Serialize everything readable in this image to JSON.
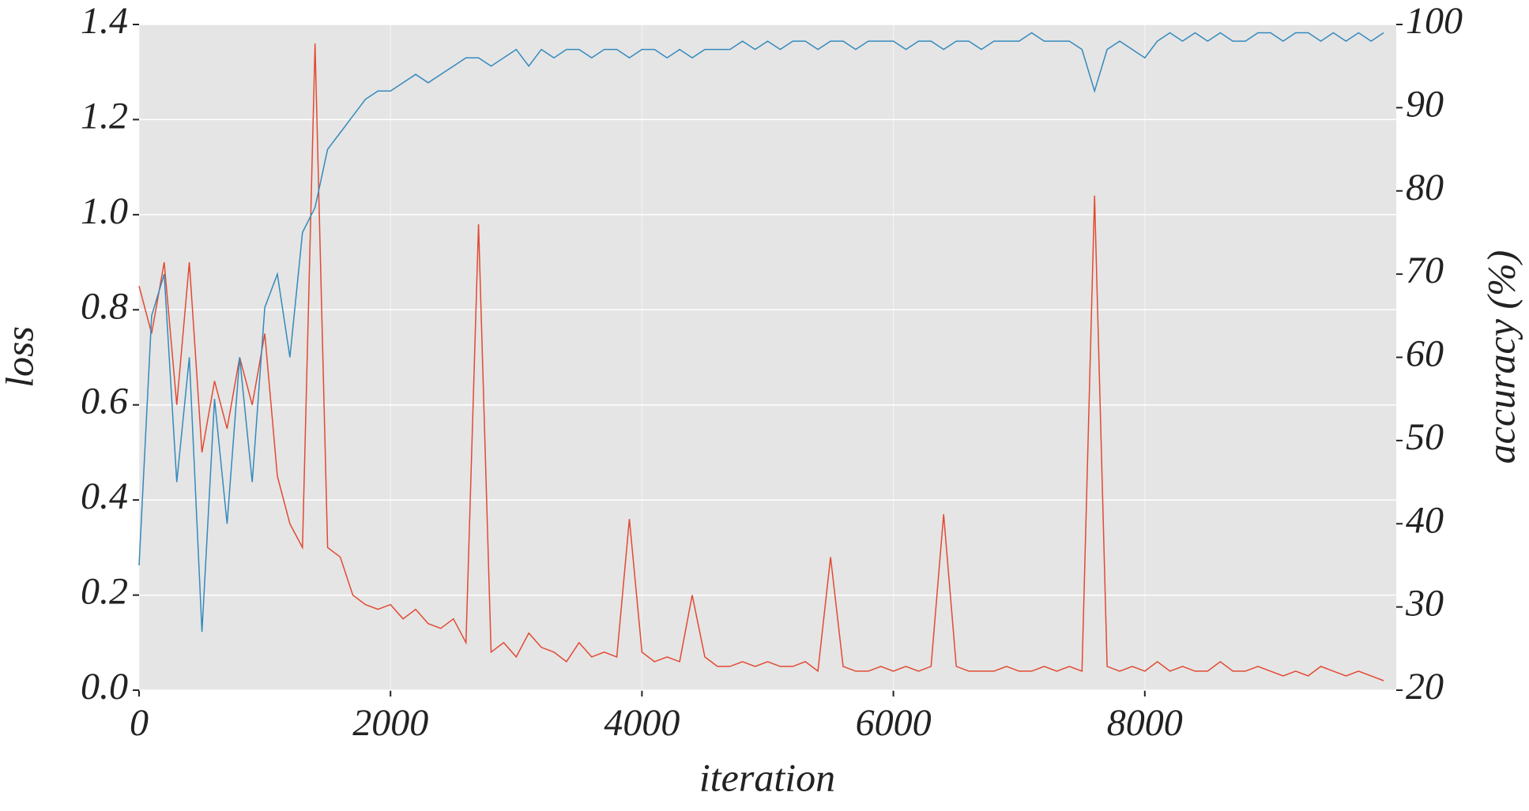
{
  "chart_data": {
    "type": "line",
    "xlabel": "iteration",
    "ylabel": "loss",
    "y2label": "accuracy (%)",
    "x": [
      0,
      100,
      200,
      300,
      400,
      500,
      600,
      700,
      800,
      900,
      1000,
      1100,
      1200,
      1300,
      1400,
      1500,
      1600,
      1700,
      1800,
      1900,
      2000,
      2100,
      2200,
      2300,
      2400,
      2500,
      2600,
      2700,
      2800,
      2900,
      3000,
      3100,
      3200,
      3300,
      3400,
      3500,
      3600,
      3700,
      3800,
      3900,
      4000,
      4100,
      4200,
      4300,
      4400,
      4500,
      4600,
      4700,
      4800,
      4900,
      5000,
      5100,
      5200,
      5300,
      5400,
      5500,
      5600,
      5700,
      5800,
      5900,
      6000,
      6100,
      6200,
      6300,
      6400,
      6500,
      6600,
      6700,
      6800,
      6900,
      7000,
      7100,
      7200,
      7300,
      7400,
      7500,
      7600,
      7700,
      7800,
      7900,
      8000,
      8100,
      8200,
      8300,
      8400,
      8500,
      8600,
      8700,
      8800,
      8900,
      9000,
      9100,
      9200,
      9300,
      9400,
      9500,
      9600,
      9700,
      9800,
      9900
    ],
    "series": [
      {
        "name": "loss",
        "color": "#e24a33",
        "axis": "y",
        "values": [
          0.85,
          0.75,
          0.9,
          0.6,
          0.9,
          0.5,
          0.65,
          0.55,
          0.7,
          0.6,
          0.75,
          0.45,
          0.35,
          0.3,
          1.36,
          0.3,
          0.28,
          0.2,
          0.18,
          0.17,
          0.18,
          0.15,
          0.17,
          0.14,
          0.13,
          0.15,
          0.1,
          0.98,
          0.08,
          0.1,
          0.07,
          0.12,
          0.09,
          0.08,
          0.06,
          0.1,
          0.07,
          0.08,
          0.07,
          0.36,
          0.08,
          0.06,
          0.07,
          0.06,
          0.2,
          0.07,
          0.05,
          0.05,
          0.06,
          0.05,
          0.06,
          0.05,
          0.05,
          0.06,
          0.04,
          0.28,
          0.05,
          0.04,
          0.04,
          0.05,
          0.04,
          0.05,
          0.04,
          0.05,
          0.37,
          0.05,
          0.04,
          0.04,
          0.04,
          0.05,
          0.04,
          0.04,
          0.05,
          0.04,
          0.05,
          0.04,
          1.04,
          0.05,
          0.04,
          0.05,
          0.04,
          0.06,
          0.04,
          0.05,
          0.04,
          0.04,
          0.06,
          0.04,
          0.04,
          0.05,
          0.04,
          0.03,
          0.04,
          0.03,
          0.05,
          0.04,
          0.03,
          0.04,
          0.03,
          0.02
        ]
      },
      {
        "name": "accuracy",
        "color": "#348abd",
        "axis": "y2",
        "values": [
          35,
          65,
          70,
          45,
          60,
          27,
          55,
          40,
          60,
          45,
          66,
          70,
          60,
          75,
          78,
          85,
          87,
          89,
          91,
          92,
          92,
          93,
          94,
          93,
          94,
          95,
          96,
          96,
          95,
          96,
          97,
          95,
          97,
          96,
          97,
          97,
          96,
          97,
          97,
          96,
          97,
          97,
          96,
          97,
          96,
          97,
          97,
          97,
          98,
          97,
          98,
          97,
          98,
          98,
          97,
          98,
          98,
          97,
          98,
          98,
          98,
          97,
          98,
          98,
          97,
          98,
          98,
          97,
          98,
          98,
          98,
          99,
          98,
          98,
          98,
          97,
          92,
          97,
          98,
          97,
          96,
          98,
          99,
          98,
          99,
          98,
          99,
          98,
          98,
          99,
          99,
          98,
          99,
          99,
          98,
          99,
          98,
          99,
          98,
          99
        ]
      }
    ],
    "xlim": [
      0,
      10000
    ],
    "xticks": [
      0,
      2000,
      4000,
      6000,
      8000
    ],
    "ylim": [
      0,
      1.4
    ],
    "yticks": [
      {
        "value": 0,
        "label": "0.0"
      },
      0.2,
      0.4,
      0.6,
      0.8,
      {
        "value": 1,
        "label": "1.0"
      },
      1.2,
      1.4
    ],
    "y2lim": [
      20,
      100
    ],
    "y2ticks": [
      20,
      30,
      40,
      50,
      60,
      70,
      80,
      90,
      100
    ],
    "grid": true
  }
}
